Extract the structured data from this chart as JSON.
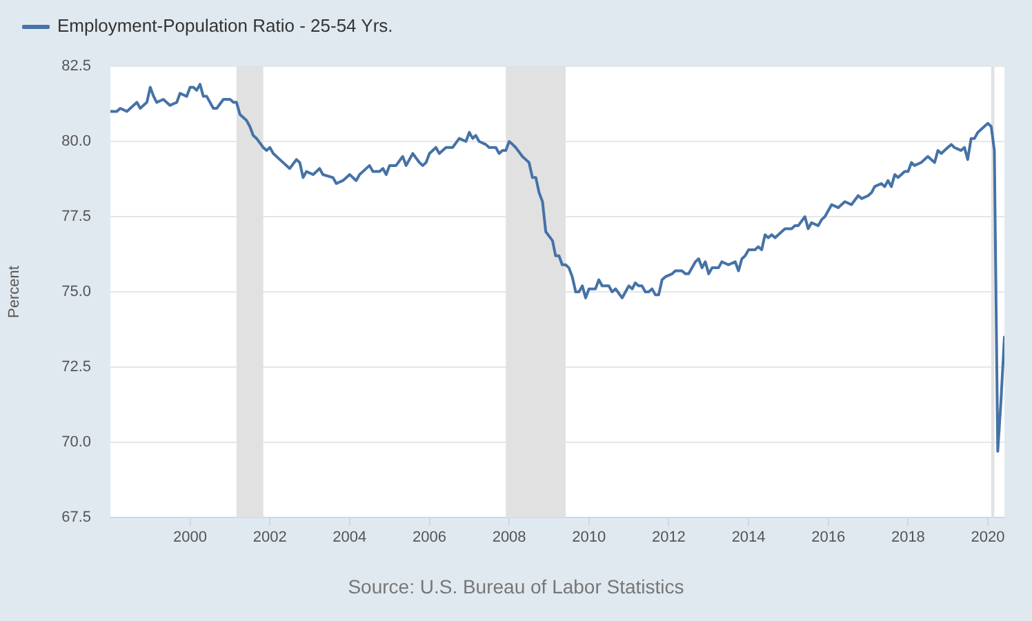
{
  "chart_data": {
    "type": "line",
    "ylabel": "Percent",
    "annotations": [
      "Source: U.S. Bureau of Labor Statistics"
    ],
    "x": [
      "1998-01",
      "1998-03",
      "1998-04",
      "1998-06",
      "1998-09",
      "1998-10",
      "1998-12",
      "1999-01",
      "1999-02",
      "1999-03",
      "1999-05",
      "1999-07",
      "1999-09",
      "1999-10",
      "1999-12",
      "2000-01",
      "2000-02",
      "2000-03",
      "2000-04",
      "2000-05",
      "2000-06",
      "2000-08",
      "2000-09",
      "2000-11",
      "2001-01",
      "2001-02",
      "2001-03",
      "2001-04",
      "2001-06",
      "2001-07",
      "2001-08",
      "2001-09",
      "2001-11",
      "2001-12",
      "2002-01",
      "2002-02",
      "2002-04",
      "2002-07",
      "2002-09",
      "2002-10",
      "2002-11",
      "2002-12",
      "2003-02",
      "2003-04",
      "2003-05",
      "2003-08",
      "2003-09",
      "2003-11",
      "2004-01",
      "2004-03",
      "2004-04",
      "2004-05",
      "2004-07",
      "2004-08",
      "2004-10",
      "2004-11",
      "2004-12",
      "2005-01",
      "2005-03",
      "2005-05",
      "2005-06",
      "2005-08",
      "2005-10",
      "2005-11",
      "2005-12",
      "2006-01",
      "2006-03",
      "2006-04",
      "2006-06",
      "2006-08",
      "2006-10",
      "2006-12",
      "2007-01",
      "2007-02",
      "2007-03",
      "2007-04",
      "2007-06",
      "2007-07",
      "2007-09",
      "2007-10",
      "2007-11",
      "2007-12",
      "2008-01",
      "2008-02",
      "2008-03",
      "2008-05",
      "2008-07",
      "2008-08",
      "2008-09",
      "2008-10",
      "2008-11",
      "2008-12",
      "2009-02",
      "2009-03",
      "2009-04",
      "2009-05",
      "2009-06",
      "2009-07",
      "2009-08",
      "2009-09",
      "2009-10",
      "2009-11",
      "2009-12",
      "2010-01",
      "2010-03",
      "2010-04",
      "2010-05",
      "2010-07",
      "2010-08",
      "2010-09",
      "2010-11",
      "2010-12",
      "2011-01",
      "2011-02",
      "2011-03",
      "2011-04",
      "2011-05",
      "2011-06",
      "2011-07",
      "2011-08",
      "2011-09",
      "2011-10",
      "2011-11",
      "2011-12",
      "2012-02",
      "2012-03",
      "2012-05",
      "2012-06",
      "2012-07",
      "2012-09",
      "2012-10",
      "2012-11",
      "2012-12",
      "2013-01",
      "2013-02",
      "2013-04",
      "2013-05",
      "2013-07",
      "2013-09",
      "2013-10",
      "2013-11",
      "2013-12",
      "2014-01",
      "2014-03",
      "2014-04",
      "2014-05",
      "2014-06",
      "2014-07",
      "2014-08",
      "2014-09",
      "2014-11",
      "2014-12",
      "2015-02",
      "2015-03",
      "2015-04",
      "2015-06",
      "2015-07",
      "2015-08",
      "2015-10",
      "2015-11",
      "2015-12",
      "2016-01",
      "2016-02",
      "2016-04",
      "2016-06",
      "2016-08",
      "2016-10",
      "2016-11",
      "2017-01",
      "2017-02",
      "2017-03",
      "2017-05",
      "2017-06",
      "2017-07",
      "2017-08",
      "2017-09",
      "2017-10",
      "2017-12",
      "2018-01",
      "2018-02",
      "2018-03",
      "2018-05",
      "2018-07",
      "2018-08",
      "2018-09",
      "2018-10",
      "2018-11",
      "2018-12",
      "2019-02",
      "2019-03",
      "2019-05",
      "2019-06",
      "2019-07",
      "2019-08",
      "2019-09",
      "2019-10",
      "2019-11",
      "2020-01",
      "2020-02",
      "2020-03",
      "2020-04",
      "2020-05",
      "2020-06"
    ],
    "series": [
      {
        "name": "Employment-Population Ratio - 25-54 Yrs.",
        "color": "#4572a7",
        "values": [
          81.0,
          81.0,
          81.1,
          81.0,
          81.3,
          81.1,
          81.3,
          81.8,
          81.5,
          81.3,
          81.4,
          81.2,
          81.3,
          81.6,
          81.5,
          81.8,
          81.8,
          81.7,
          81.9,
          81.5,
          81.5,
          81.1,
          81.1,
          81.4,
          81.4,
          81.3,
          81.3,
          80.9,
          80.7,
          80.5,
          80.2,
          80.1,
          79.8,
          79.7,
          79.8,
          79.6,
          79.4,
          79.1,
          79.4,
          79.3,
          78.8,
          79.0,
          78.9,
          79.1,
          78.9,
          78.8,
          78.6,
          78.7,
          78.9,
          78.7,
          78.9,
          79.0,
          79.2,
          79.0,
          79.0,
          79.1,
          78.9,
          79.2,
          79.2,
          79.5,
          79.2,
          79.6,
          79.3,
          79.2,
          79.3,
          79.6,
          79.8,
          79.6,
          79.8,
          79.8,
          80.1,
          80.0,
          80.3,
          80.1,
          80.2,
          80.0,
          79.9,
          79.8,
          79.8,
          79.6,
          79.7,
          79.7,
          80.0,
          79.9,
          79.8,
          79.5,
          79.3,
          78.8,
          78.8,
          78.3,
          78.0,
          77.0,
          76.7,
          76.2,
          76.2,
          75.9,
          75.9,
          75.8,
          75.5,
          75.0,
          75.0,
          75.2,
          74.8,
          75.1,
          75.1,
          75.4,
          75.2,
          75.2,
          75.0,
          75.1,
          74.8,
          75.0,
          75.2,
          75.1,
          75.3,
          75.2,
          75.2,
          75.0,
          75.0,
          75.1,
          74.9,
          74.9,
          75.4,
          75.5,
          75.6,
          75.7,
          75.7,
          75.6,
          75.6,
          76.0,
          76.1,
          75.8,
          76.0,
          75.6,
          75.8,
          75.8,
          76.0,
          75.9,
          76.0,
          75.7,
          76.1,
          76.2,
          76.4,
          76.4,
          76.5,
          76.4,
          76.9,
          76.8,
          76.9,
          76.8,
          77.0,
          77.1,
          77.1,
          77.2,
          77.2,
          77.5,
          77.1,
          77.3,
          77.2,
          77.4,
          77.5,
          77.7,
          77.9,
          77.8,
          78.0,
          77.9,
          78.2,
          78.1,
          78.2,
          78.3,
          78.5,
          78.6,
          78.5,
          78.7,
          78.5,
          78.9,
          78.8,
          79.0,
          79.0,
          79.3,
          79.2,
          79.3,
          79.5,
          79.4,
          79.3,
          79.7,
          79.6,
          79.7,
          79.9,
          79.8,
          79.7,
          79.8,
          79.4,
          80.1,
          80.1,
          80.3,
          80.4,
          80.6,
          80.5,
          79.7,
          69.7,
          71.4,
          73.5
        ]
      }
    ],
    "xlim": [
      "1998-01",
      "2020-06"
    ],
    "xticks": [
      "2000",
      "2002",
      "2004",
      "2006",
      "2008",
      "2010",
      "2012",
      "2014",
      "2016",
      "2018",
      "2020"
    ],
    "ylim": [
      67.5,
      82.5
    ],
    "yticks": [
      67.5,
      {
        "value": 70,
        "label": "70.0"
      },
      72.5,
      {
        "value": 75,
        "label": "75.0"
      },
      77.5,
      {
        "value": 80,
        "label": "80.0"
      },
      82.5
    ],
    "bands": [
      {
        "axis": "x",
        "from": "2001-03",
        "to": "2001-11",
        "color": "#e1e1e1"
      },
      {
        "axis": "x",
        "from": "2007-12",
        "to": "2009-06",
        "color": "#e1e1e1"
      },
      {
        "axis": "x",
        "from": "2020-02",
        "to": "2020-03",
        "color": "#e1e1e1"
      }
    ],
    "grid": "y",
    "legend": "top left",
    "marker": "none",
    "line_style": "solid"
  }
}
